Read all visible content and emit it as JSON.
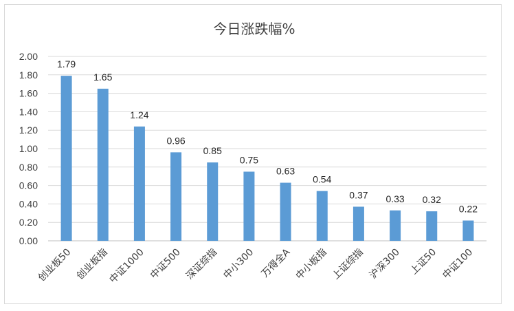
{
  "chart_data": {
    "type": "bar",
    "title": "今日涨跌幅%",
    "categories": [
      "创业板50",
      "创业板指",
      "中证1000",
      "中证500",
      "深证综指",
      "中小300",
      "万得全A",
      "中小板指",
      "上证综指",
      "沪深300",
      "上证50",
      "中证100"
    ],
    "values": [
      1.79,
      1.65,
      1.24,
      0.96,
      0.85,
      0.75,
      0.63,
      0.54,
      0.37,
      0.33,
      0.32,
      0.22
    ],
    "data_labels": [
      "1.79",
      "1.65",
      "1.24",
      "0.96",
      "0.85",
      "0.75",
      "0.63",
      "0.54",
      "0.37",
      "0.33",
      "0.32",
      "0.22"
    ],
    "yticks": [
      "0.00",
      "0.20",
      "0.40",
      "0.60",
      "0.80",
      "1.00",
      "1.20",
      "1.40",
      "1.60",
      "1.80",
      "2.00"
    ],
    "ylim": [
      0,
      2.0
    ],
    "grid": true,
    "bar_color": "#5b9bd5",
    "grid_color": "#d9d9d9"
  }
}
